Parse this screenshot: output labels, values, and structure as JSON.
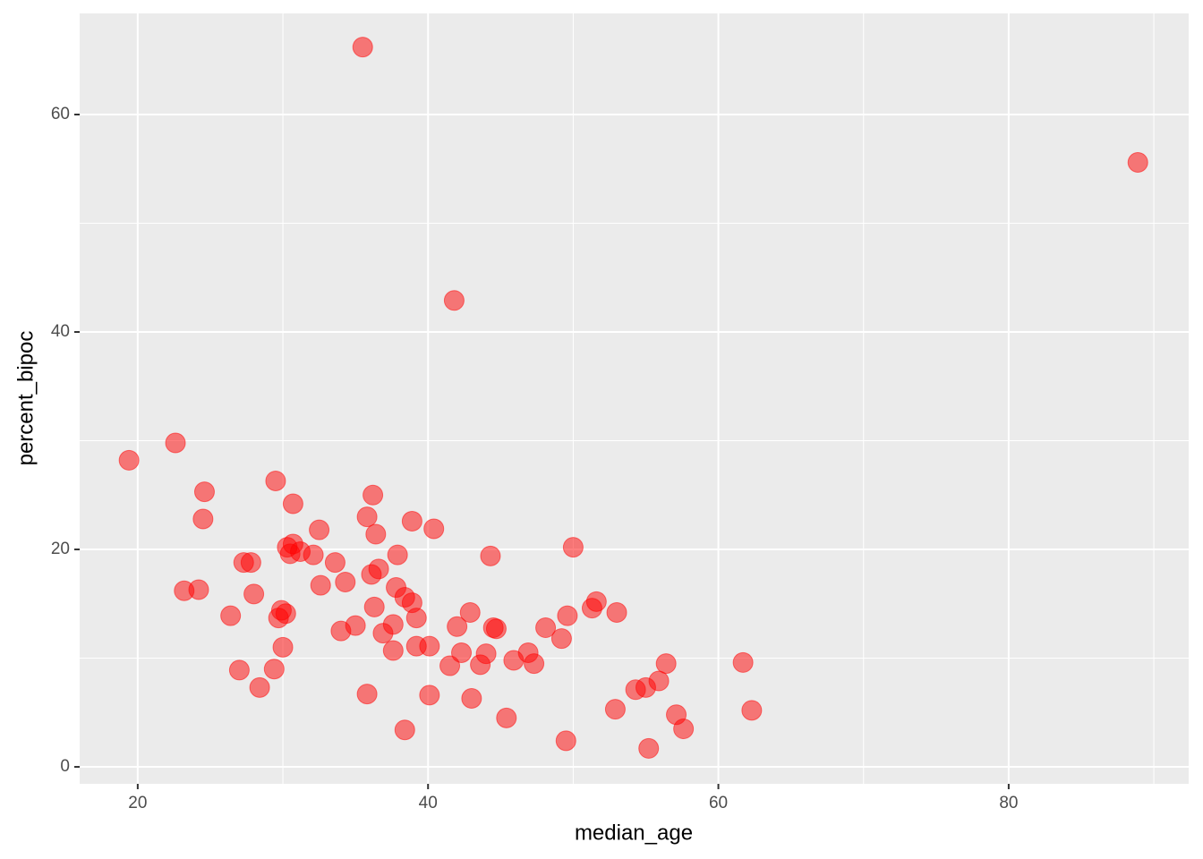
{
  "chart_data": {
    "type": "scatter",
    "x_label": "median_age",
    "y_label": "percent_bipoc",
    "color": "#ff0000",
    "opacity": 0.5,
    "grid": true,
    "panel_color": "#ebebeb",
    "xlim": [
      16.0,
      92.4
    ],
    "ylim": [
      -1.56,
      69.3
    ],
    "xticks": [
      20,
      40,
      60,
      80
    ],
    "yticks": [
      0,
      20,
      40,
      60
    ],
    "x_minor_grid": [
      30,
      50,
      70,
      90
    ],
    "y_minor_grid": [
      10,
      30,
      50
    ],
    "x": [
      35.5,
      88.9,
      41.8,
      19.4,
      22.6,
      24.6,
      24.5,
      23.2,
      24.2,
      26.4,
      27.0,
      27.3,
      27.8,
      28.0,
      28.4,
      29.4,
      29.5,
      29.7,
      29.9,
      30.2,
      30.0,
      30.3,
      30.7,
      30.5,
      30.7,
      31.2,
      32.1,
      32.5,
      32.6,
      33.6,
      34.0,
      34.3,
      35.0,
      35.8,
      35.8,
      36.2,
      36.1,
      36.4,
      36.3,
      36.6,
      36.9,
      37.6,
      37.6,
      37.8,
      37.9,
      38.4,
      38.4,
      38.9,
      38.9,
      39.2,
      39.2,
      40.1,
      40.1,
      40.4,
      41.5,
      42.0,
      42.3,
      42.9,
      43.0,
      43.6,
      44.0,
      44.3,
      44.5,
      44.7,
      45.4,
      45.9,
      46.9,
      47.3,
      48.1,
      49.2,
      49.5,
      49.6,
      50.0,
      51.3,
      51.6,
      52.9,
      53.0,
      54.3,
      55.0,
      55.2,
      55.9,
      56.4,
      57.1,
      57.6,
      61.7,
      62.3
    ],
    "y": [
      66.2,
      55.6,
      42.9,
      28.2,
      29.8,
      25.3,
      22.8,
      16.2,
      16.3,
      13.9,
      8.9,
      18.8,
      18.8,
      15.9,
      7.3,
      9.0,
      26.3,
      13.7,
      14.4,
      14.1,
      11.0,
      20.2,
      20.5,
      19.6,
      24.2,
      19.8,
      19.5,
      21.8,
      16.7,
      18.8,
      12.5,
      17.0,
      13.0,
      6.7,
      23.0,
      25.0,
      17.7,
      21.4,
      14.7,
      18.2,
      12.3,
      10.7,
      13.1,
      16.5,
      19.5,
      15.6,
      3.4,
      22.6,
      15.1,
      13.7,
      11.1,
      11.1,
      6.6,
      21.9,
      9.3,
      12.9,
      10.5,
      14.2,
      6.3,
      9.4,
      10.4,
      19.4,
      12.8,
      12.7,
      4.5,
      9.8,
      10.5,
      9.5,
      12.8,
      11.8,
      2.4,
      13.9,
      20.2,
      14.6,
      15.2,
      5.3,
      14.2,
      7.1,
      7.3,
      1.7,
      7.9,
      9.5,
      4.8,
      3.5,
      9.6,
      5.2
    ]
  }
}
